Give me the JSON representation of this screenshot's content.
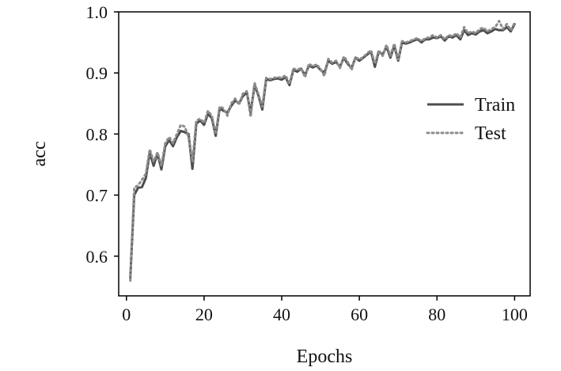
{
  "chart_data": {
    "type": "line",
    "title": "",
    "xlabel": "Epochs",
    "ylabel": "acc",
    "xlim": [
      -2,
      104
    ],
    "ylim": [
      0.535,
      1.0
    ],
    "xticks": [
      0,
      20,
      40,
      60,
      80,
      100
    ],
    "yticks": [
      0.6,
      0.7,
      0.8,
      0.9,
      1.0
    ],
    "xtick_labels": [
      "0",
      "20",
      "40",
      "60",
      "80",
      "100"
    ],
    "ytick_labels": [
      "0.6",
      "0.7",
      "0.8",
      "0.9",
      "1.0"
    ],
    "grid": false,
    "legend_position": "right",
    "x": [
      1,
      2,
      3,
      4,
      5,
      6,
      7,
      8,
      9,
      10,
      11,
      12,
      13,
      14,
      15,
      16,
      17,
      18,
      19,
      20,
      21,
      22,
      23,
      24,
      25,
      26,
      27,
      28,
      29,
      30,
      31,
      32,
      33,
      34,
      35,
      36,
      37,
      38,
      39,
      40,
      41,
      42,
      43,
      44,
      45,
      46,
      47,
      48,
      49,
      50,
      51,
      52,
      53,
      54,
      55,
      56,
      57,
      58,
      59,
      60,
      61,
      62,
      63,
      64,
      65,
      66,
      67,
      68,
      69,
      70,
      71,
      72,
      73,
      74,
      75,
      76,
      77,
      78,
      79,
      80,
      81,
      82,
      83,
      84,
      85,
      86,
      87,
      88,
      89,
      90,
      91,
      92,
      93,
      94,
      95,
      96,
      97,
      98,
      99,
      100
    ],
    "series": [
      {
        "name": "Train",
        "style": "solid",
        "color": "#4d4d4d",
        "values": [
          0.565,
          0.7,
          0.712,
          0.713,
          0.728,
          0.77,
          0.748,
          0.768,
          0.742,
          0.78,
          0.79,
          0.78,
          0.795,
          0.805,
          0.803,
          0.8,
          0.743,
          0.817,
          0.822,
          0.815,
          0.833,
          0.826,
          0.797,
          0.842,
          0.838,
          0.835,
          0.846,
          0.855,
          0.85,
          0.862,
          0.868,
          0.835,
          0.88,
          0.863,
          0.84,
          0.89,
          0.888,
          0.89,
          0.891,
          0.889,
          0.893,
          0.88,
          0.905,
          0.902,
          0.907,
          0.896,
          0.912,
          0.909,
          0.912,
          0.905,
          0.9,
          0.92,
          0.915,
          0.918,
          0.91,
          0.925,
          0.915,
          0.908,
          0.925,
          0.92,
          0.925,
          0.93,
          0.935,
          0.91,
          0.935,
          0.93,
          0.943,
          0.925,
          0.945,
          0.92,
          0.95,
          0.948,
          0.95,
          0.953,
          0.955,
          0.95,
          0.955,
          0.955,
          0.958,
          0.957,
          0.96,
          0.953,
          0.96,
          0.958,
          0.962,
          0.955,
          0.97,
          0.962,
          0.965,
          0.963,
          0.968,
          0.97,
          0.965,
          0.968,
          0.972,
          0.97,
          0.97,
          0.975,
          0.968,
          0.98
        ]
      },
      {
        "name": "Test",
        "style": "dotted",
        "color": "#8c8c8c",
        "values": [
          0.56,
          0.712,
          0.716,
          0.725,
          0.735,
          0.775,
          0.755,
          0.77,
          0.748,
          0.785,
          0.795,
          0.785,
          0.8,
          0.815,
          0.812,
          0.795,
          0.755,
          0.822,
          0.825,
          0.818,
          0.838,
          0.83,
          0.8,
          0.845,
          0.842,
          0.83,
          0.85,
          0.858,
          0.848,
          0.866,
          0.87,
          0.828,
          0.884,
          0.865,
          0.845,
          0.892,
          0.89,
          0.892,
          0.893,
          0.892,
          0.896,
          0.882,
          0.907,
          0.905,
          0.908,
          0.893,
          0.915,
          0.911,
          0.914,
          0.906,
          0.895,
          0.923,
          0.917,
          0.92,
          0.908,
          0.927,
          0.918,
          0.905,
          0.926,
          0.922,
          0.926,
          0.932,
          0.937,
          0.915,
          0.937,
          0.928,
          0.946,
          0.928,
          0.948,
          0.922,
          0.952,
          0.95,
          0.952,
          0.955,
          0.957,
          0.952,
          0.957,
          0.958,
          0.962,
          0.958,
          0.962,
          0.955,
          0.962,
          0.96,
          0.965,
          0.958,
          0.975,
          0.965,
          0.968,
          0.965,
          0.972,
          0.974,
          0.968,
          0.972,
          0.975,
          0.985,
          0.972,
          0.98,
          0.97,
          0.982
        ]
      }
    ]
  }
}
